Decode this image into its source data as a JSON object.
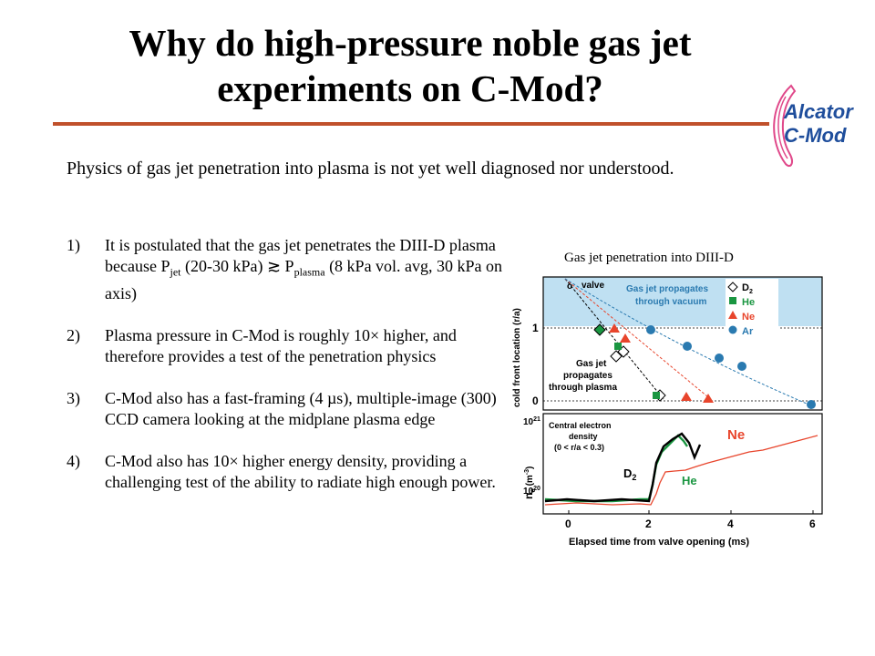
{
  "slide": {
    "title_line1": "Why do high-pressure noble gas jet",
    "title_line2": "experiments on C-Mod?",
    "logo_line1": "Alcator",
    "logo_line2": "C-Mod",
    "intro": "Physics of gas jet penetration into plasma is not yet well diagnosed nor understood.",
    "items": [
      {
        "num": "1)",
        "text_a": "It is postulated that the gas jet penetrates the DIII-D plasma because P",
        "sub_a": "jet",
        "text_b": " (20-30 kPa) ≳ P",
        "sub_b": "plasma",
        "text_c": " (8 kPa vol. avg, 30 kPa on axis)"
      },
      {
        "num": "2)",
        "text": "Plasma pressure in C-Mod is roughly 10× higher, and therefore provides a test of the penetration physics"
      },
      {
        "num": "3)",
        "text": "C-Mod also has a fast-framing (4 µs), multiple-image (300) CCD camera looking at the midplane plasma edge"
      },
      {
        "num": "4)",
        "text": "C-Mod also has 10× higher energy density, providing a challenging test of the ability to radiate high enough power."
      }
    ],
    "figure_caption": "Gas jet penetration into DIII-D"
  },
  "figure": {
    "top_ylabel": "cold front location (r/a)",
    "top_yticks": [
      "1",
      "0"
    ],
    "valve_label": "valve",
    "valve_marker": "o",
    "vacuum_label_1": "Gas jet propagates",
    "vacuum_label_2": "through vacuum",
    "plasma_label_1": "Gas jet",
    "plasma_label_2": "propagates",
    "plasma_label_3": "through plasma",
    "legend": [
      {
        "name": "D",
        "sub": "2",
        "color": "#000000",
        "marker": "diamond-open"
      },
      {
        "name": "He",
        "color": "#1a9641",
        "marker": "square"
      },
      {
        "name": "Ne",
        "color": "#e8452c",
        "marker": "triangle"
      },
      {
        "name": "Ar",
        "color": "#2a7ab0",
        "marker": "circle"
      }
    ],
    "bottom_ylabel_main": "n",
    "bottom_ylabel_sub": "e",
    "bottom_ylabel_unit": " (m",
    "bottom_ylabel_exp": "-3",
    "bottom_ylabel_close": ")",
    "bottom_ytick_top_base": "10",
    "bottom_ytick_top_exp": "21",
    "bottom_ytick_bot_base": "10",
    "bottom_ytick_bot_exp": "20",
    "density_label_1": "Central electron",
    "density_label_2": "density",
    "density_label_3": "(0 < r/a < 0.3)",
    "trace_label_ne": "Ne",
    "trace_label_d2": "D",
    "trace_label_d2_sub": "2",
    "trace_label_he": "He",
    "xlabel": "Elapsed time from valve opening (ms)",
    "xticks": [
      "0",
      "2",
      "4",
      "6"
    ],
    "colors": {
      "shade": "#bfe0f2",
      "d2": "#000000",
      "he": "#1a9641",
      "ne": "#e8452c",
      "ar": "#2a7ab0",
      "title_rule": "#c0502b",
      "logo_text": "#1f4e9c",
      "logo_swirl": "#e0488a"
    }
  }
}
